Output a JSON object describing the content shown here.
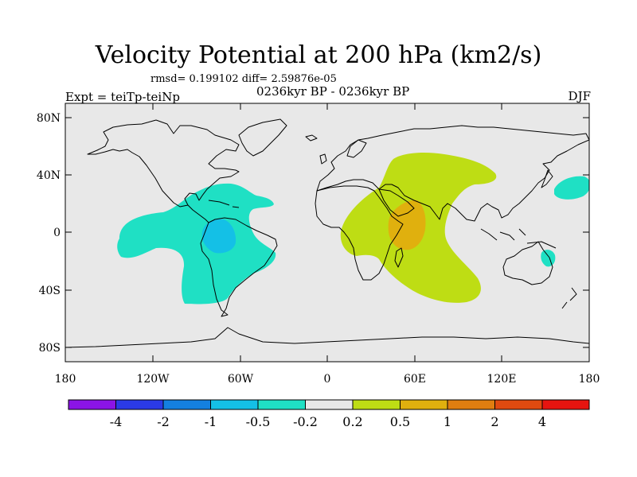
{
  "header": {
    "title": "Velocity Potential at 200 hPa (km2/s)",
    "stats": "rmsd= 0.199102 diff= 2.59876e-05",
    "experiment": "Expt = teiTp-teiNp",
    "period": "0236kyr BP - 0236kyr BP",
    "season": "DJF"
  },
  "map": {
    "lat_labels": [
      "80N",
      "40N",
      "0",
      "40S",
      "80S"
    ],
    "lon_labels": [
      "180",
      "120W",
      "60W",
      "0",
      "60E",
      "120E",
      "180"
    ],
    "ocean_color": "#e8e8e8",
    "anomalies": [
      {
        "name": "Pacific-Americas negative anomaly",
        "range": "-0.5 to -0.2",
        "color": "#1fe0c4"
      },
      {
        "name": "South America core",
        "range": "-1 to -0.5",
        "color": "#14c0e6"
      },
      {
        "name": "Africa-Indian Ocean positive anomaly",
        "range": "0.2 to 0.5",
        "color": "#bedd14"
      },
      {
        "name": "East Africa core",
        "range": "0.5 to 1",
        "color": "#e0b00e"
      },
      {
        "name": "Northwest Pacific negative patch",
        "range": "-0.5 to -0.2",
        "color": "#1fe0c4"
      },
      {
        "name": "Australia negative patch",
        "range": "-0.5 to -0.2",
        "color": "#1fe0c4"
      }
    ]
  },
  "colorbar": {
    "colors": [
      "#8b14e6",
      "#2b3ae6",
      "#1480e0",
      "#14c0e6",
      "#1fe0c4",
      "#e8e8e8",
      "#bedd14",
      "#e0b00e",
      "#e07e10",
      "#e04a10",
      "#e61410"
    ],
    "labels": [
      "-4",
      "-2",
      "-1",
      "-0.5",
      "-0.2",
      "0.2",
      "0.5",
      "1",
      "2",
      "4"
    ]
  }
}
